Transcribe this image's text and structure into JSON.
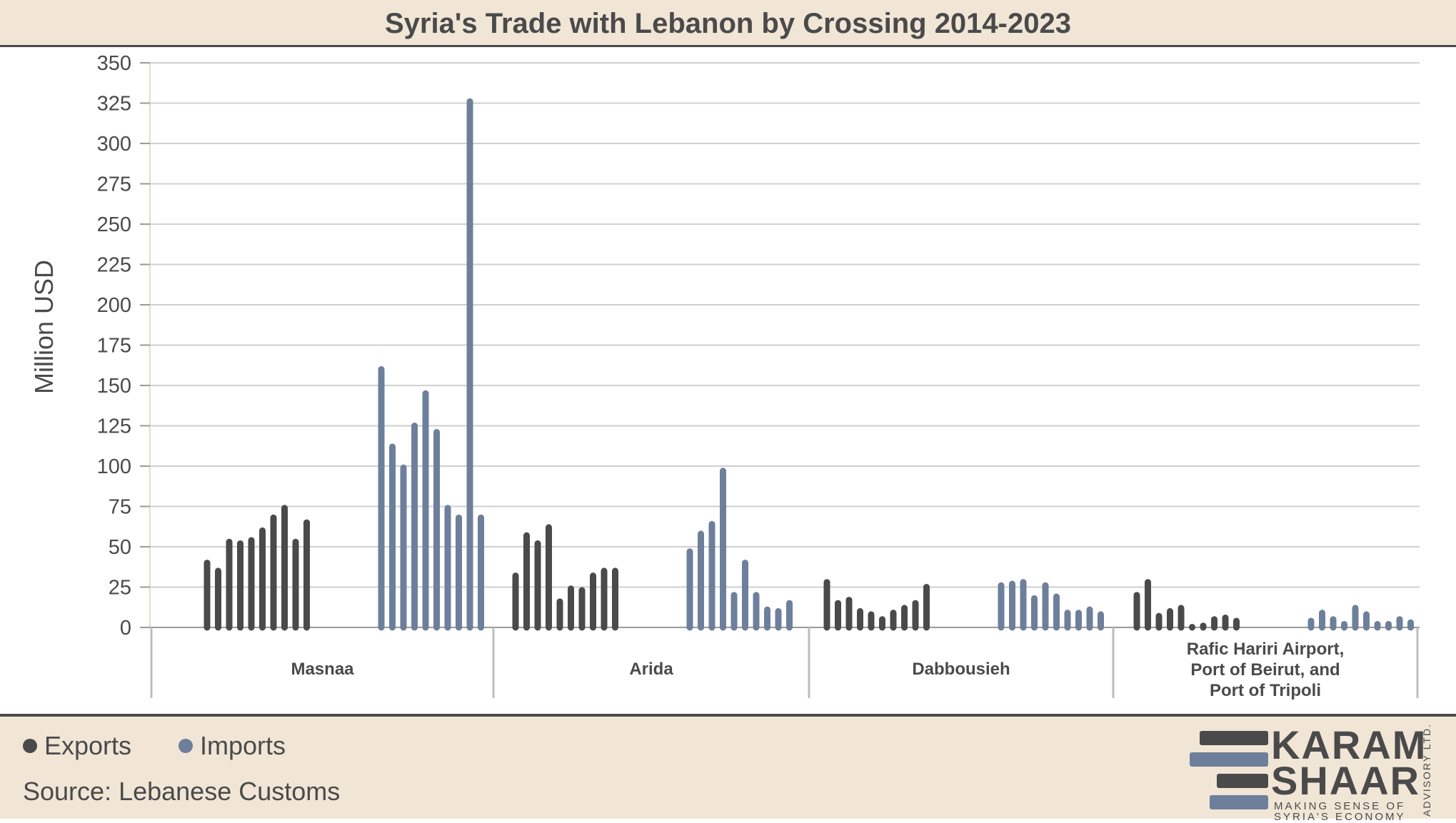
{
  "header": {
    "title": "Syria's Trade with Lebanon by Crossing 2014-2023"
  },
  "colors": {
    "exports": "#4a4a4a",
    "imports": "#6e7f9c",
    "header_bg": "#f1e6d6",
    "grid": "#cfcfcf"
  },
  "legend": {
    "exports_label": "Exports",
    "imports_label": "Imports"
  },
  "footer": {
    "source": "Source: Lebanese Customs"
  },
  "logo": {
    "line1": "KARAM",
    "line2": "SHAAR",
    "tagline": "MAKING SENSE OF SYRIA'S ECONOMY",
    "side": "ADVISORY LTD."
  },
  "chart_data": {
    "type": "bar",
    "title": "Syria's Trade with Lebanon by Crossing 2014-2023",
    "ylabel": "Million USD",
    "ylim": [
      0,
      350
    ],
    "yticks": [
      0,
      25,
      50,
      75,
      100,
      125,
      150,
      175,
      200,
      225,
      250,
      275,
      300,
      325,
      350
    ],
    "grid": true,
    "legend_position": "bottom-left",
    "groups": [
      {
        "name": "Masnaa",
        "labels": [
          "Masnaa"
        ],
        "exports": [
          40,
          35,
          53,
          52,
          54,
          60,
          68,
          74,
          53,
          65
        ],
        "imports": [
          160,
          112,
          99,
          125,
          145,
          121,
          74,
          68,
          326,
          68
        ]
      },
      {
        "name": "Arida",
        "labels": [
          "Arida"
        ],
        "exports": [
          32,
          57,
          52,
          62,
          16,
          24,
          23,
          32,
          35,
          35
        ],
        "imports": [
          47,
          58,
          64,
          97,
          20,
          40,
          20,
          11,
          10,
          15
        ]
      },
      {
        "name": "Dabbousieh",
        "labels": [
          "Dabbousieh"
        ],
        "exports": [
          28,
          15,
          17,
          10,
          8,
          5,
          9,
          12,
          15,
          25
        ],
        "imports": [
          26,
          27,
          28,
          18,
          26,
          19,
          9,
          9,
          11,
          8
        ]
      },
      {
        "name": "Rafic Hariri Airport, Port of Beirut, and Port of Tripoli",
        "labels": [
          "Rafic Hariri Airport,",
          "Port of Beirut, and",
          "Port of Tripoli"
        ],
        "exports": [
          20,
          28,
          7,
          10,
          12,
          0,
          1,
          5,
          6,
          4
        ],
        "imports": [
          4,
          9,
          5,
          2,
          12,
          8,
          2,
          2,
          5,
          3
        ]
      }
    ]
  }
}
